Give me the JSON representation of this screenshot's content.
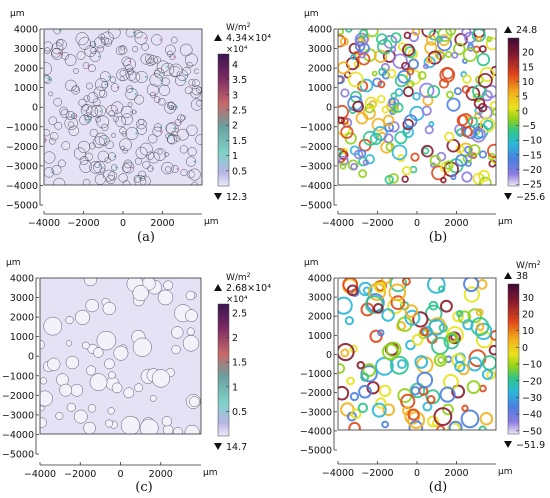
{
  "chart_data": [
    {
      "type": "heatmap",
      "panel": "(a)",
      "x_unit": "μm",
      "y_unit": "μm",
      "xlim": [
        -4000,
        4000
      ],
      "ylim": [
        -4000,
        4000
      ],
      "x_ticks": [
        "−4000",
        "−2000",
        "0",
        "2000"
      ],
      "y_ticks": [
        "4000",
        "3000",
        "2000",
        "1000",
        "0",
        "−1000",
        "−2000",
        "−3000",
        "−4000",
        "−5000"
      ],
      "colorbar": {
        "unit": "W/m²",
        "max_label": "4.34×10⁴",
        "exponent": "×10⁴",
        "min_label": "12.3",
        "ticks": [
          "4",
          "3.5",
          "3",
          "2.5",
          "2",
          "1.5",
          "1",
          "0.5"
        ],
        "range": [
          0.0012,
          4.34
        ]
      }
    },
    {
      "type": "heatmap",
      "panel": "(b)",
      "x_unit": "μm",
      "y_unit": "μm",
      "xlim": [
        -4000,
        4000
      ],
      "ylim": [
        -4000,
        4000
      ],
      "x_ticks": [
        "−4000",
        "−2000",
        "0",
        "2000"
      ],
      "y_ticks": [
        "4000",
        "3000",
        "2000",
        "1000",
        "0",
        "−1000",
        "−2000",
        "−3000",
        "−4000",
        "−5000"
      ],
      "colorbar": {
        "max_label": "24.8",
        "min_label": "−25.6",
        "ticks": [
          "20",
          "15",
          "10",
          "5",
          "0",
          "−5",
          "−10",
          "−15",
          "−20",
          "−25"
        ],
        "range": [
          -25.6,
          24.8
        ]
      }
    },
    {
      "type": "heatmap",
      "panel": "(c)",
      "x_unit": "μm",
      "y_unit": "μm",
      "xlim": [
        -4000,
        4000
      ],
      "ylim": [
        -4000,
        4000
      ],
      "x_ticks": [
        "−4000",
        "−2000",
        "0",
        "2000"
      ],
      "y_ticks": [
        "4000",
        "3000",
        "2000",
        "1000",
        "0",
        "−1000",
        "−2000",
        "−3000",
        "−4000",
        "−5000"
      ],
      "colorbar": {
        "unit": "W/m²",
        "max_label": "2.68×10⁴",
        "exponent": "×10⁴",
        "min_label": "14.7",
        "ticks": [
          "2.5",
          "2",
          "1.5",
          "1",
          "0.5"
        ],
        "range": [
          0.0015,
          2.68
        ]
      }
    },
    {
      "type": "heatmap",
      "panel": "(d)",
      "x_unit": "μm",
      "y_unit": "μm",
      "xlim": [
        -4000,
        4000
      ],
      "ylim": [
        -4000,
        4000
      ],
      "x_ticks": [
        "−4000",
        "−2000",
        "0",
        "2000"
      ],
      "y_ticks": [
        "4000",
        "3000",
        "2000",
        "1000",
        "0",
        "−1000",
        "−2000",
        "−3000",
        "−4000",
        "−5000"
      ],
      "colorbar": {
        "unit": "W/m²",
        "max_label": "38",
        "min_label": "−51.9",
        "ticks": [
          "30",
          "20",
          "10",
          "0",
          "−10",
          "−20",
          "−30",
          "−40",
          "−50"
        ],
        "range": [
          -51.9,
          38
        ]
      }
    }
  ]
}
